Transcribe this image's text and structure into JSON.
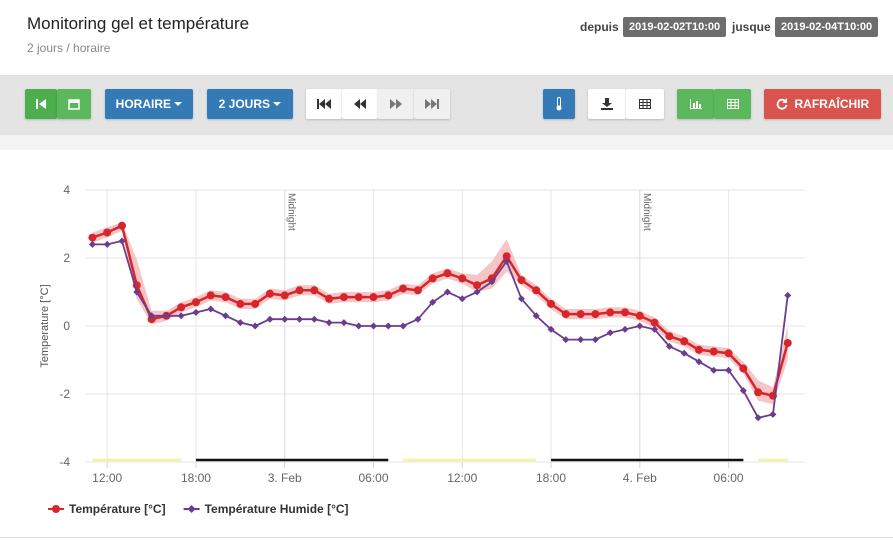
{
  "header": {
    "title": "Monitoring gel et température",
    "subtitle": "2 jours / horaire",
    "from_label": "depuis",
    "from": "2019-02-02T10:00",
    "to_label": "jusque",
    "to": "2019-02-04T10:00"
  },
  "toolbar": {
    "interval": "HORAIRE",
    "range": "2 JOURS",
    "refresh": "RAFRAÎCHIR"
  },
  "chart_data": {
    "type": "line",
    "y_label": "Temperature [°C]",
    "x": [
      "2019-02-02T11:00",
      "2019-02-02T12:00",
      "2019-02-02T13:00",
      "2019-02-02T14:00",
      "2019-02-02T15:00",
      "2019-02-02T16:00",
      "2019-02-02T17:00",
      "2019-02-02T18:00",
      "2019-02-02T19:00",
      "2019-02-02T20:00",
      "2019-02-02T21:00",
      "2019-02-02T22:00",
      "2019-02-02T23:00",
      "2019-02-03T00:00",
      "2019-02-03T01:00",
      "2019-02-03T02:00",
      "2019-02-03T03:00",
      "2019-02-03T04:00",
      "2019-02-03T05:00",
      "2019-02-03T06:00",
      "2019-02-03T07:00",
      "2019-02-03T08:00",
      "2019-02-03T09:00",
      "2019-02-03T10:00",
      "2019-02-03T11:00",
      "2019-02-03T12:00",
      "2019-02-03T13:00",
      "2019-02-03T14:00",
      "2019-02-03T15:00",
      "2019-02-03T16:00",
      "2019-02-03T17:00",
      "2019-02-03T18:00",
      "2019-02-03T19:00",
      "2019-02-03T20:00",
      "2019-02-03T21:00",
      "2019-02-03T22:00",
      "2019-02-03T23:00",
      "2019-02-04T00:00",
      "2019-02-04T01:00",
      "2019-02-04T02:00",
      "2019-02-04T03:00",
      "2019-02-04T04:00",
      "2019-02-04T05:00",
      "2019-02-04T06:00",
      "2019-02-04T07:00",
      "2019-02-04T08:00",
      "2019-02-04T09:00",
      "2019-02-04T10:00"
    ],
    "series": [
      {
        "name": "Température [°C]",
        "color": "#d7262b",
        "marker": "circle",
        "values": [
          2.6,
          2.75,
          2.95,
          1.2,
          0.2,
          0.3,
          0.55,
          0.7,
          0.9,
          0.85,
          0.65,
          0.65,
          0.95,
          0.9,
          1.05,
          1.05,
          0.8,
          0.85,
          0.85,
          0.85,
          0.9,
          1.1,
          1.05,
          1.4,
          1.55,
          1.4,
          1.2,
          1.4,
          2.05,
          1.35,
          1.05,
          0.65,
          0.35,
          0.35,
          0.35,
          0.4,
          0.4,
          0.3,
          0.1,
          -0.3,
          -0.45,
          -0.7,
          -0.75,
          -0.8,
          -1.25,
          -1.95,
          -2.05,
          -0.5
        ]
      },
      {
        "name": "Température Humide [°C]",
        "color": "#6a3d8f",
        "marker": "diamond",
        "values": [
          2.4,
          2.4,
          2.5,
          1.0,
          0.3,
          0.3,
          0.3,
          0.4,
          0.5,
          0.3,
          0.1,
          0.0,
          0.2,
          0.2,
          0.2,
          0.2,
          0.1,
          0.1,
          0.0,
          0.0,
          0.0,
          0.0,
          0.2,
          0.7,
          1.0,
          0.8,
          1.0,
          1.3,
          1.9,
          0.8,
          0.3,
          -0.1,
          -0.4,
          -0.4,
          -0.4,
          -0.2,
          -0.1,
          0.0,
          -0.1,
          -0.6,
          -0.8,
          -1.05,
          -1.3,
          -1.3,
          -1.9,
          -2.7,
          -2.6,
          0.9
        ]
      }
    ],
    "band": {
      "color": "#f4b6b8",
      "high": [
        2.75,
        2.9,
        3.05,
        1.95,
        0.45,
        0.45,
        0.7,
        0.85,
        1.05,
        1.0,
        0.8,
        0.8,
        1.1,
        1.05,
        1.2,
        1.2,
        0.95,
        1.0,
        1.0,
        1.0,
        1.05,
        1.25,
        1.2,
        1.55,
        1.7,
        1.55,
        1.5,
        1.9,
        2.55,
        1.5,
        1.2,
        0.8,
        0.5,
        0.5,
        0.5,
        0.55,
        0.55,
        0.45,
        0.25,
        -0.15,
        -0.3,
        -0.55,
        -0.6,
        -0.65,
        -1.05,
        -1.6,
        -1.8,
        0.0
      ],
      "low": [
        2.45,
        2.6,
        2.8,
        0.8,
        0.05,
        0.15,
        0.4,
        0.55,
        0.75,
        0.7,
        0.5,
        0.5,
        0.8,
        0.75,
        0.9,
        0.9,
        0.65,
        0.7,
        0.7,
        0.7,
        0.75,
        0.95,
        0.9,
        1.25,
        1.4,
        1.25,
        1.0,
        1.1,
        1.6,
        1.2,
        0.9,
        0.5,
        0.2,
        0.2,
        0.2,
        0.25,
        0.25,
        0.15,
        -0.05,
        -0.45,
        -0.6,
        -0.85,
        -0.9,
        -0.95,
        -1.4,
        -2.2,
        -2.3,
        -1.0
      ]
    },
    "xlim": [
      "2019-02-02T10:30",
      "2019-02-04T11:10"
    ],
    "xticks": [
      {
        "value": "2019-02-02T12:00",
        "label": "12:00"
      },
      {
        "value": "2019-02-02T18:00",
        "label": "18:00"
      },
      {
        "value": "2019-02-03T00:00",
        "label": "3. Feb"
      },
      {
        "value": "2019-02-03T06:00",
        "label": "06:00"
      },
      {
        "value": "2019-02-03T12:00",
        "label": "12:00"
      },
      {
        "value": "2019-02-03T18:00",
        "label": "18:00"
      },
      {
        "value": "2019-02-04T00:00",
        "label": "4. Feb"
      },
      {
        "value": "2019-02-04T06:00",
        "label": "06:00"
      }
    ],
    "ylim": [
      -4,
      4
    ],
    "yticks": [
      -4,
      -2,
      0,
      2,
      4
    ],
    "grid": true,
    "plot_lines": [
      {
        "value": "2019-02-03T00:00",
        "label": "Midnight"
      },
      {
        "value": "2019-02-04T00:00",
        "label": "Midnight"
      }
    ],
    "periods": [
      {
        "from": "2019-02-02T11:00",
        "to": "2019-02-02T17:00",
        "color": "#f2f5a0"
      },
      {
        "from": "2019-02-02T18:00",
        "to": "2019-02-03T07:00",
        "color": "#111111"
      },
      {
        "from": "2019-02-03T08:00",
        "to": "2019-02-03T17:00",
        "color": "#f2f5a0"
      },
      {
        "from": "2019-02-03T18:00",
        "to": "2019-02-04T07:00",
        "color": "#111111"
      },
      {
        "from": "2019-02-04T08:00",
        "to": "2019-02-04T10:00",
        "color": "#f2f5a0"
      }
    ],
    "legend": "bottom-left"
  }
}
